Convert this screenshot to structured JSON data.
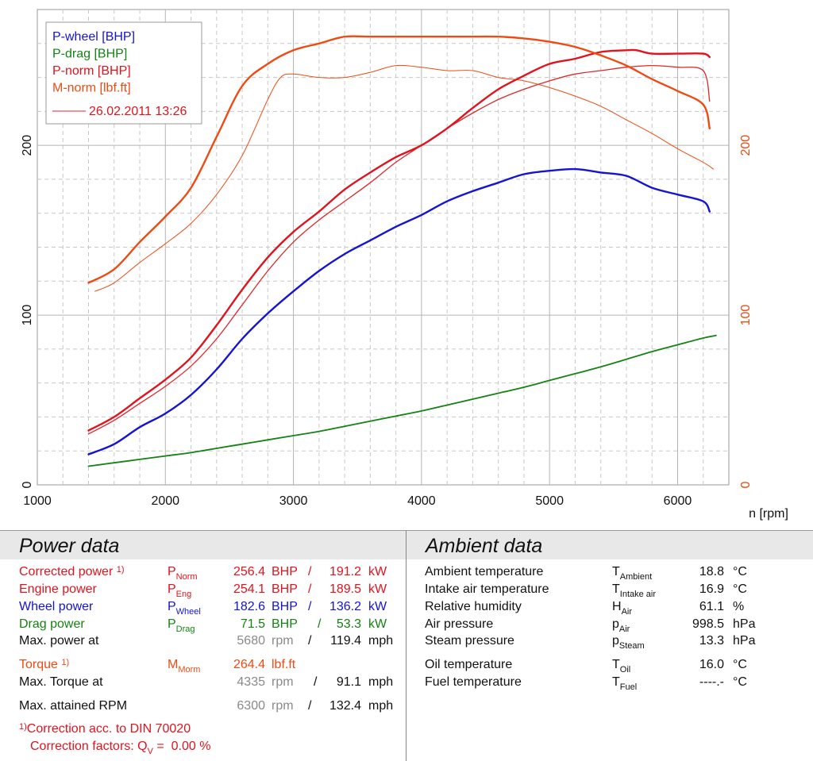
{
  "chart_data": {
    "type": "line",
    "xlabel": "n [rpm]",
    "xlim": [
      1000,
      6400
    ],
    "x_ticks": [
      1000,
      2000,
      3000,
      4000,
      5000,
      6000
    ],
    "y_left_lim": [
      0,
      280
    ],
    "y_left_ticks": [
      0,
      100,
      200
    ],
    "y_right_lim": [
      0,
      280
    ],
    "y_right_ticks": [
      0,
      100,
      200
    ],
    "legend": [
      "P-wheel [BHP]",
      "P-drag [BHP]",
      "P-norm [BHP]",
      "M-norm [lbf.ft]"
    ],
    "legend_ref": "26.02.2011 13:26",
    "grid": true,
    "series": [
      {
        "name": "P-norm [BHP] ref",
        "color": "#e2262a",
        "width": 1.3,
        "x": [
          1400,
          1600,
          1800,
          2000,
          2200,
          2400,
          2600,
          2800,
          3000,
          3200,
          3400,
          3600,
          3800,
          4000,
          4200,
          4400,
          4600,
          4800,
          5000,
          5200,
          5400,
          5600,
          5800,
          6000,
          6200,
          6250
        ],
        "y": [
          30,
          38,
          48,
          58,
          70,
          86,
          106,
          126,
          143,
          156,
          167,
          178,
          190,
          200,
          210,
          219,
          227,
          233,
          238,
          242,
          244,
          246,
          247,
          246,
          244,
          226
        ]
      },
      {
        "name": "M-norm [lbf.ft] ref",
        "color": "#f04a12",
        "width": 1.0,
        "x": [
          1450,
          1600,
          1800,
          2000,
          2200,
          2400,
          2600,
          2800,
          2900,
          3000,
          3200,
          3400,
          3600,
          3800,
          4000,
          4200,
          4400,
          4600,
          4800,
          5000,
          5200,
          5400,
          5600,
          5800,
          6000,
          6200,
          6280
        ],
        "y": [
          114,
          119,
          131,
          142,
          154,
          171,
          194,
          227,
          240,
          242,
          240,
          240,
          243,
          247,
          246,
          244,
          244,
          240,
          238,
          234,
          229,
          223,
          215,
          207,
          198,
          190,
          186
        ]
      },
      {
        "name": "P-norm [BHP]",
        "color": "#e0141e",
        "width": 2.4,
        "x": [
          1400,
          1600,
          1800,
          2000,
          2200,
          2400,
          2600,
          2800,
          3000,
          3200,
          3400,
          3600,
          3800,
          4000,
          4200,
          4400,
          4600,
          4800,
          5000,
          5200,
          5400,
          5600,
          5680,
          5800,
          6000,
          6200,
          6250
        ],
        "y": [
          32,
          40,
          51,
          62,
          75,
          94,
          115,
          134,
          149,
          161,
          174,
          184,
          193,
          200,
          210,
          222,
          233,
          241,
          248,
          251,
          255,
          256,
          256,
          254,
          254,
          254,
          252
        ]
      },
      {
        "name": "M-norm [lbf.ft]",
        "color": "#f04a12",
        "width": 2.4,
        "x": [
          1400,
          1600,
          1800,
          2000,
          2200,
          2400,
          2600,
          2800,
          3000,
          3200,
          3400,
          3600,
          3800,
          4000,
          4200,
          4335,
          4600,
          4800,
          5000,
          5200,
          5400,
          5600,
          5800,
          6000,
          6200,
          6250
        ],
        "y": [
          119,
          127,
          143,
          158,
          175,
          205,
          235,
          248,
          256,
          260,
          264,
          264,
          264,
          264,
          264,
          264,
          264,
          263,
          261,
          258,
          253,
          247,
          239,
          232,
          224,
          210
        ]
      },
      {
        "name": "P-wheel [BHP]",
        "color": "#1414d2",
        "width": 2.4,
        "x": [
          1400,
          1600,
          1800,
          2000,
          2200,
          2400,
          2600,
          2800,
          3000,
          3200,
          3400,
          3600,
          3800,
          4000,
          4200,
          4400,
          4600,
          4800,
          5000,
          5200,
          5400,
          5600,
          5800,
          6000,
          6200,
          6250
        ],
        "y": [
          18,
          24,
          34,
          42,
          53,
          68,
          86,
          101,
          114,
          126,
          136,
          144,
          152,
          159,
          167,
          173,
          178,
          183,
          185,
          186,
          184,
          182,
          175,
          171,
          167,
          161
        ]
      },
      {
        "name": "P-drag [BHP]",
        "color": "#148214",
        "width": 1.8,
        "x": [
          1400,
          1600,
          1800,
          2000,
          2200,
          2400,
          2600,
          2800,
          3000,
          3200,
          3400,
          3600,
          3800,
          4000,
          4200,
          4400,
          4600,
          4800,
          5000,
          5200,
          5400,
          5600,
          5800,
          6000,
          6200,
          6300
        ],
        "y": [
          11,
          13,
          15,
          17,
          19,
          21.5,
          24,
          26.5,
          29,
          31.5,
          34.5,
          37.5,
          40.5,
          43.5,
          47,
          50.5,
          54,
          57.5,
          61.5,
          65.5,
          69.5,
          74,
          78.5,
          82.5,
          86.5,
          88
        ]
      }
    ]
  },
  "power": {
    "title": "Power data",
    "rows": [
      {
        "label": "Corrected power",
        "sup": "1)",
        "sym": "P",
        "sub": "Norm",
        "v1": "256.4",
        "u1": "BHP",
        "sep": "/",
        "v2": "191.2",
        "u2": "kW",
        "cls": "red"
      },
      {
        "label": "Engine power",
        "sup": "",
        "sym": "P",
        "sub": "Eng",
        "v1": "254.1",
        "u1": "BHP",
        "sep": "/",
        "v2": "189.5",
        "u2": "kW",
        "cls": "red"
      },
      {
        "label": "Wheel power",
        "sup": "",
        "sym": "P",
        "sub": "Wheel",
        "v1": "182.6",
        "u1": "BHP",
        "sep": "/",
        "v2": "136.2",
        "u2": "kW",
        "cls": "blue"
      },
      {
        "label": "Drag power",
        "sup": "",
        "sym": "P",
        "sub": "Drag",
        "v1": "71.5",
        "u1": "BHP",
        "sep": "/",
        "v2": "53.3",
        "u2": "kW",
        "cls": "green"
      }
    ],
    "max_power": {
      "label": "Max. power at",
      "rpm": "5680",
      "rpm_unit": "rpm",
      "sep": "/",
      "speed": "119.4",
      "speed_unit": "mph"
    },
    "torque": {
      "label": "Torque",
      "sup": "1)",
      "sym": "M",
      "sub": "Morm",
      "value": "264.4",
      "unit": "lbf.ft"
    },
    "max_torque": {
      "label": "Max. Torque at",
      "rpm": "4335",
      "rpm_unit": "rpm",
      "sep": "/",
      "speed": "91.1",
      "speed_unit": "mph"
    },
    "max_rpm": {
      "label": "Max. attained RPM",
      "rpm": "6300",
      "rpm_unit": "rpm",
      "sep": "/",
      "speed": "132.4",
      "speed_unit": "mph"
    },
    "footnote_mark": "1)",
    "footnote1": "Correction acc. to DIN 70020",
    "footnote2_label": "Correction factors: Q",
    "footnote2_sub": "V",
    "footnote2_eq": " = ",
    "footnote2_value": "0.00 %"
  },
  "ambient": {
    "title": "Ambient data",
    "rows": [
      {
        "label": "Ambient temperature",
        "sym": "T",
        "sub": "Ambient",
        "value": "18.8",
        "unit": "°C"
      },
      {
        "label": "Intake air temperature",
        "sym": "T",
        "sub": "Intake air",
        "value": "16.9",
        "unit": "°C"
      },
      {
        "label": "Relative humidity",
        "sym": "H",
        "sub": "Air",
        "value": "61.1",
        "unit": "%"
      },
      {
        "label": "Air pressure",
        "sym": "p",
        "sub": "Air",
        "value": "998.5",
        "unit": "hPa"
      },
      {
        "label": "Steam pressure",
        "sym": "p",
        "sub": "Steam",
        "value": "13.3",
        "unit": "hPa"
      },
      {
        "label": "Oil temperature",
        "sym": "T",
        "sub": "Oil",
        "value": "16.0",
        "unit": "°C"
      },
      {
        "label": "Fuel temperature",
        "sym": "T",
        "sub": "Fuel",
        "value": "----.-",
        "unit": "°C"
      }
    ]
  }
}
